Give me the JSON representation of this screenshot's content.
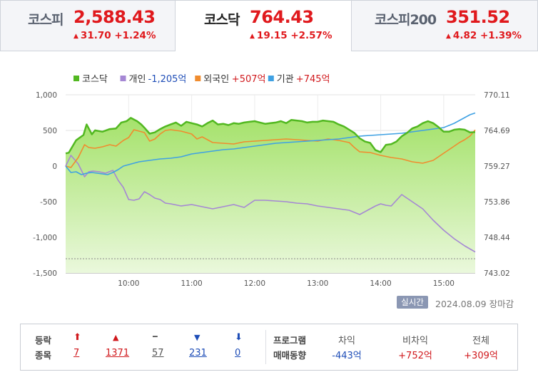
{
  "tabs": [
    {
      "name": "코스피",
      "value": "2,588.43",
      "change": "31.70",
      "pct": "+1.24%",
      "active": false
    },
    {
      "name": "코스닥",
      "value": "764.43",
      "change": "19.15",
      "pct": "+2.57%",
      "active": true
    },
    {
      "name": "코스피200",
      "value": "351.52",
      "change": "4.82",
      "pct": "+1.39%",
      "active": false
    }
  ],
  "up_glyph": "▲",
  "chart_data": {
    "type": "line",
    "legend": [
      {
        "name": "코스닥",
        "amount": "",
        "color": "#52b821"
      },
      {
        "name": "개인",
        "amount": "-1,205억",
        "color": "#a587d4",
        "amount_color": "#1e4db7"
      },
      {
        "name": "외국인",
        "amount": "+507억",
        "color": "#f08c2e",
        "amount_color": "#d0181c"
      },
      {
        "name": "기관",
        "amount": "+745억",
        "color": "#3fa1e3",
        "amount_color": "#d0181c"
      }
    ],
    "left_axis": {
      "ticks": [
        "1,000",
        "500",
        "0",
        "-500",
        "-1,000",
        "-1,500"
      ],
      "range": [
        -1500,
        1000
      ]
    },
    "right_axis": {
      "ticks": [
        "770.11",
        "764.69",
        "759.27",
        "753.86",
        "748.44",
        "743.02"
      ],
      "range": [
        743.02,
        770.11
      ]
    },
    "x_ticks": [
      "10:00",
      "11:00",
      "12:00",
      "13:00",
      "14:00",
      "15:00"
    ],
    "x_range": [
      "09:00",
      "15:30"
    ],
    "x_tick_minutes": [
      60,
      120,
      180,
      240,
      300,
      360
    ],
    "reference_line_right": 745.19,
    "series": [
      {
        "name": "코스닥",
        "unit": "index",
        "x": [
          0,
          3,
          10,
          17,
          20,
          25,
          28,
          35,
          42,
          48,
          53,
          58,
          62,
          68,
          72,
          75,
          80,
          85,
          90,
          95,
          100,
          105,
          110,
          115,
          120,
          125,
          130,
          135,
          140,
          145,
          150,
          155,
          160,
          165,
          170,
          175,
          180,
          185,
          190,
          195,
          200,
          205,
          210,
          215,
          220,
          225,
          230,
          235,
          240,
          245,
          250,
          255,
          260,
          265,
          270,
          275,
          280,
          285,
          290,
          295,
          300,
          305,
          310,
          315,
          320,
          325,
          330,
          335,
          340,
          345,
          350,
          355,
          360,
          365,
          370,
          375,
          380,
          385,
          390
        ],
        "y": [
          761.2,
          761.3,
          763.2,
          764.0,
          765.6,
          764.1,
          764.7,
          764.5,
          764.9,
          765.0,
          765.9,
          766.1,
          766.6,
          766.1,
          765.6,
          765.1,
          764.2,
          764.4,
          764.9,
          765.3,
          765.6,
          765.9,
          765.4,
          766.0,
          765.8,
          765.6,
          765.3,
          765.8,
          766.2,
          765.6,
          765.7,
          765.5,
          765.8,
          765.7,
          765.9,
          766.0,
          766.1,
          765.9,
          765.7,
          765.8,
          765.9,
          766.1,
          765.8,
          766.3,
          766.2,
          766.1,
          765.9,
          766.0,
          766.0,
          766.2,
          766.1,
          766.0,
          765.6,
          765.3,
          764.8,
          764.3,
          763.5,
          763.0,
          762.8,
          761.7,
          761.4,
          762.5,
          762.6,
          763.0,
          763.8,
          764.3,
          765.0,
          765.3,
          765.8,
          766.1,
          765.8,
          765.2,
          764.5,
          764.5,
          764.8,
          764.9,
          764.8,
          764.4,
          764.43
        ]
      },
      {
        "name": "개인",
        "unit": "억",
        "x": [
          0,
          5,
          12,
          18,
          22,
          26,
          32,
          38,
          45,
          50,
          55,
          60,
          65,
          70,
          75,
          80,
          85,
          90,
          95,
          100,
          110,
          120,
          130,
          140,
          150,
          160,
          170,
          180,
          190,
          200,
          210,
          220,
          230,
          240,
          250,
          260,
          270,
          280,
          290,
          295,
          300,
          305,
          310,
          320,
          330,
          340,
          350,
          360,
          370,
          380,
          390
        ],
        "y": [
          0,
          150,
          30,
          -150,
          -80,
          -70,
          -80,
          -100,
          -60,
          -200,
          -300,
          -470,
          -480,
          -460,
          -360,
          -400,
          -450,
          -470,
          -520,
          -530,
          -560,
          -540,
          -570,
          -600,
          -570,
          -540,
          -580,
          -480,
          -480,
          -490,
          -500,
          -520,
          -530,
          -560,
          -580,
          -600,
          -620,
          -680,
          -600,
          -560,
          -530,
          -550,
          -560,
          -400,
          -500,
          -600,
          -760,
          -900,
          -1020,
          -1120,
          -1205
        ]
      },
      {
        "name": "외국인",
        "unit": "억",
        "x": [
          0,
          5,
          12,
          18,
          22,
          28,
          35,
          42,
          48,
          55,
          60,
          65,
          70,
          75,
          80,
          85,
          90,
          95,
          100,
          110,
          120,
          125,
          130,
          140,
          150,
          160,
          170,
          180,
          190,
          200,
          210,
          220,
          230,
          240,
          250,
          260,
          270,
          275,
          280,
          290,
          300,
          310,
          320,
          330,
          340,
          350,
          360,
          370,
          375,
          380,
          385,
          390
        ],
        "y": [
          0,
          -20,
          120,
          300,
          260,
          250,
          270,
          300,
          280,
          360,
          400,
          510,
          490,
          470,
          350,
          380,
          450,
          500,
          510,
          490,
          450,
          380,
          410,
          330,
          320,
          310,
          340,
          350,
          360,
          370,
          380,
          370,
          360,
          350,
          380,
          360,
          330,
          260,
          200,
          190,
          150,
          120,
          100,
          60,
          40,
          80,
          180,
          280,
          330,
          370,
          420,
          507
        ]
      },
      {
        "name": "기관",
        "unit": "억",
        "x": [
          0,
          5,
          10,
          15,
          20,
          25,
          30,
          35,
          40,
          45,
          50,
          55,
          60,
          70,
          80,
          90,
          100,
          110,
          120,
          130,
          140,
          150,
          160,
          170,
          180,
          190,
          200,
          210,
          220,
          230,
          240,
          250,
          260,
          270,
          280,
          290,
          300,
          310,
          320,
          330,
          340,
          350,
          360,
          370,
          375,
          380,
          385,
          390
        ],
        "y": [
          0,
          -90,
          -80,
          -120,
          -100,
          -90,
          -100,
          -110,
          -120,
          -90,
          -50,
          0,
          20,
          60,
          80,
          100,
          110,
          130,
          170,
          190,
          210,
          230,
          240,
          260,
          280,
          300,
          320,
          330,
          340,
          350,
          360,
          370,
          380,
          400,
          420,
          430,
          440,
          450,
          460,
          480,
          500,
          520,
          540,
          600,
          640,
          680,
          720,
          745
        ]
      }
    ]
  },
  "footer": {
    "realtime_badge": "실시간",
    "date": "2024.08.09",
    "status": "장마감"
  },
  "stats": {
    "label_top": "등락",
    "label_bottom": "종목",
    "items": [
      {
        "icon": "⬆",
        "value": "7",
        "color": "#d0181c"
      },
      {
        "icon": "▲",
        "value": "1371",
        "color": "#d0181c"
      },
      {
        "icon": "━",
        "value": "57",
        "color": "#555555"
      },
      {
        "icon": "▼",
        "value": "231",
        "color": "#1e4db7"
      },
      {
        "icon": "⬇",
        "value": "0",
        "color": "#1e4db7"
      }
    ],
    "program_label_top": "프로그램",
    "program_label_bottom": "매매동향",
    "program": [
      {
        "head": "차익",
        "value": "-443억",
        "color": "#1e4db7"
      },
      {
        "head": "비차익",
        "value": "+752억",
        "color": "#d0181c"
      },
      {
        "head": "전체",
        "value": "+309억",
        "color": "#d0181c"
      }
    ]
  }
}
